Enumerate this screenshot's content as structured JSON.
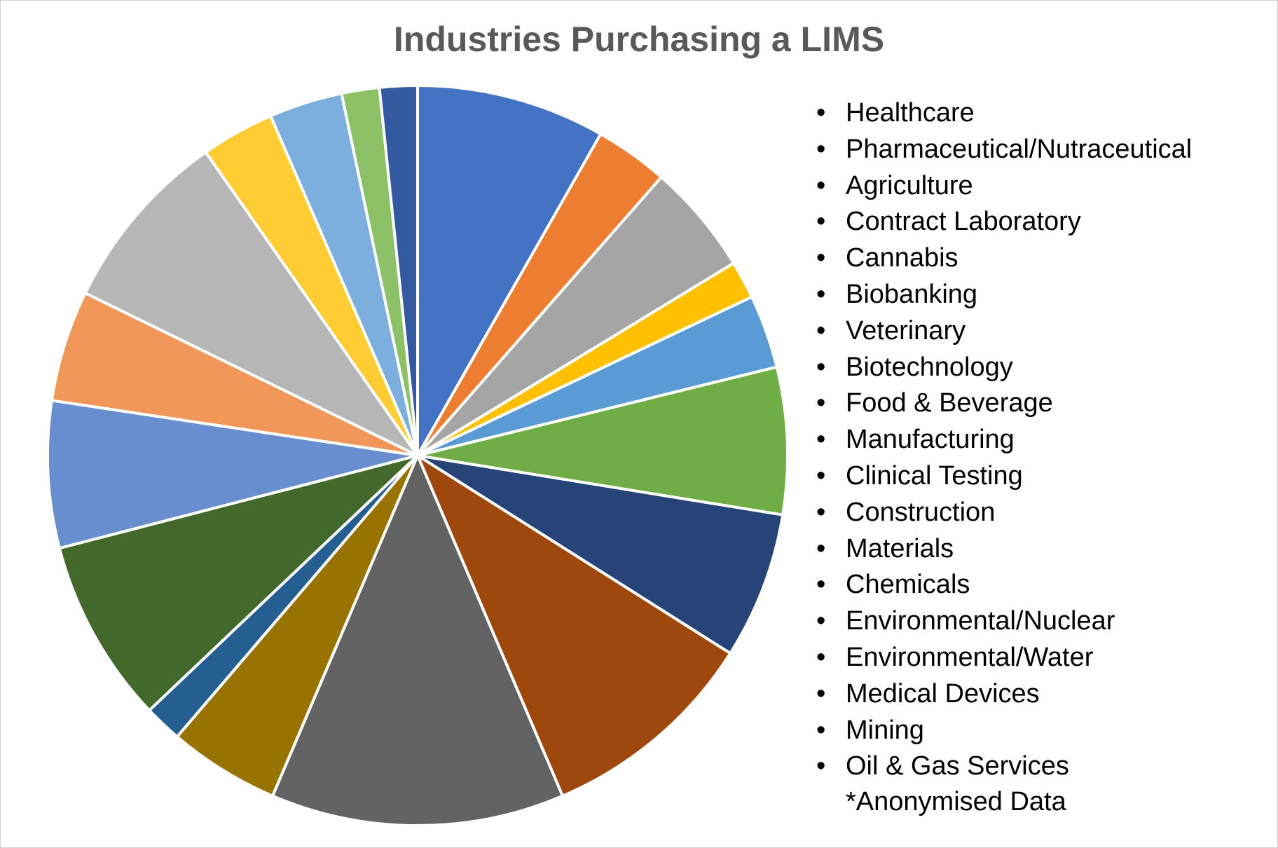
{
  "chart_data": {
    "type": "pie",
    "title": "Industries Purchasing a LIMS",
    "footnote": "*Anonymised Data",
    "legend_position": "right",
    "categories": [
      "Healthcare",
      "Pharmaceutical/Nutraceutical",
      "Agriculture",
      "Contract Laboratory",
      "Cannabis",
      "Biobanking",
      "Veterinary",
      "Biotechnology",
      "Food & Beverage",
      "Manufacturing",
      "Clinical Testing",
      "Construction",
      "Materials",
      "Chemicals",
      "Environmental/Nuclear",
      "Environmental/Water",
      "Medical Devices",
      "Mining",
      "Oil & Gas Services"
    ],
    "values": [
      9.0,
      3.5,
      5.3,
      1.8,
      3.5,
      7.0,
      7.0,
      10.5,
      14.0,
      5.3,
      1.8,
      8.8,
      7.0,
      5.3,
      8.8,
      3.5,
      3.5,
      1.8,
      1.8
    ],
    "colors": [
      "#4472C4",
      "#ED7D31",
      "#A5A5A5",
      "#FFC000",
      "#5B9BD5",
      "#70AD47",
      "#264478",
      "#9E480E",
      "#636363",
      "#997300",
      "#255E91",
      "#43682B",
      "#698ED0",
      "#F1975A",
      "#B7B7B7",
      "#FFCD33",
      "#7CAFDD",
      "#8CC168",
      "#335AA1"
    ]
  },
  "legend": {
    "bullet": "•"
  }
}
